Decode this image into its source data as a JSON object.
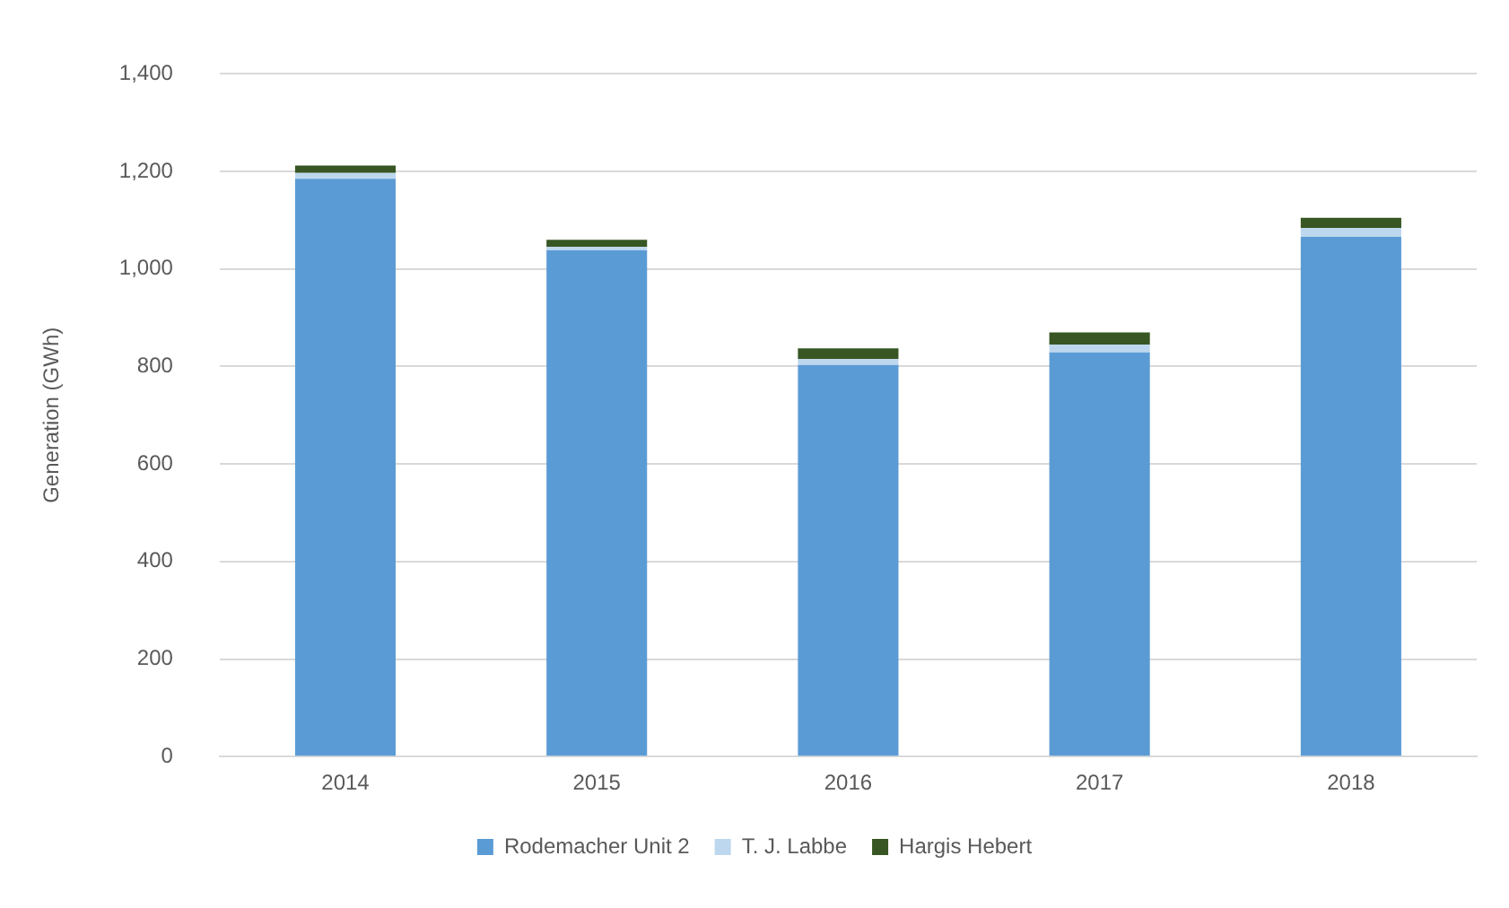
{
  "chart_data": {
    "type": "bar",
    "ylabel": "Generation (GWh)",
    "stacked": true,
    "categories": [
      "2014",
      "2015",
      "2016",
      "2017",
      "2018"
    ],
    "series": [
      {
        "name": "Rodemacher Unit 2",
        "color": "#5b9bd5",
        "values": [
          1185,
          1038,
          803,
          829,
          1066
        ]
      },
      {
        "name": "T. J. Labbe",
        "color": "#bdd7ee",
        "values": [
          12,
          7,
          12,
          16,
          18
        ]
      },
      {
        "name": "Hargis Hebert",
        "color": "#375623",
        "values": [
          15,
          15,
          22,
          25,
          21
        ]
      }
    ],
    "ylim": [
      0,
      1400
    ],
    "yticks": [
      {
        "value": 0,
        "label": "0"
      },
      {
        "value": 200,
        "label": "200"
      },
      {
        "value": 400,
        "label": "400"
      },
      {
        "value": 600,
        "label": "600"
      },
      {
        "value": 800,
        "label": "800"
      },
      {
        "value": 1000,
        "label": "1,000"
      },
      {
        "value": 1200,
        "label": "1,200"
      },
      {
        "value": 1400,
        "label": "1,400"
      }
    ],
    "grid": "y",
    "legend": "bottom"
  }
}
